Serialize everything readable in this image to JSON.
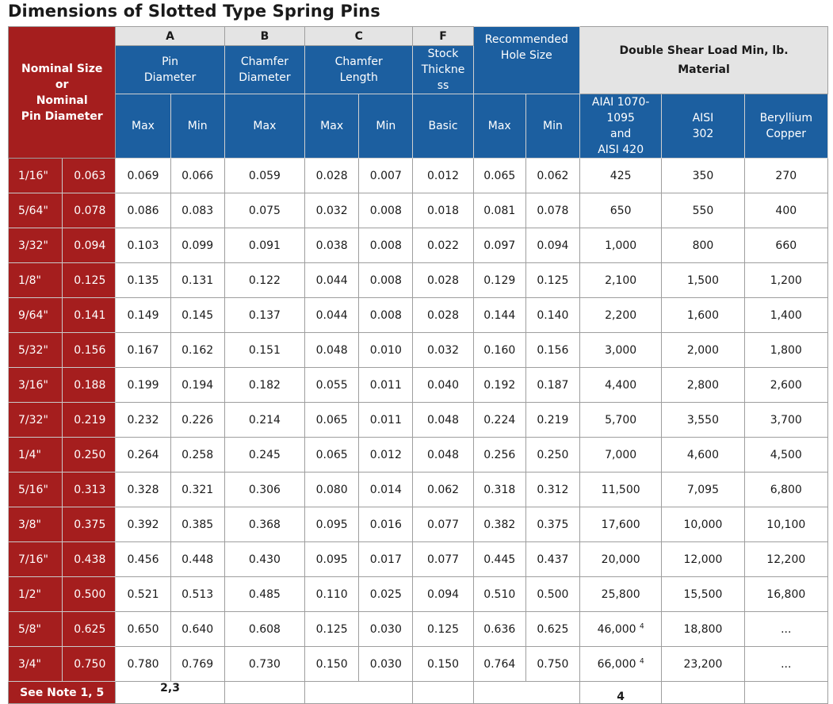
{
  "title": "Dimensions of Slotted Type Spring Pins",
  "header": {
    "nominal": [
      "Nominal Size",
      "or",
      "Nominal",
      "Pin Diameter"
    ],
    "letters": {
      "a": "A",
      "b": "B",
      "c": "C",
      "f": "F"
    },
    "pin_diameter": [
      "Pin",
      "Diameter"
    ],
    "chamfer_diameter": [
      "Chamfer",
      "Diameter"
    ],
    "chamfer_length": [
      "Chamfer",
      "Length"
    ],
    "stock_thickness": [
      "Stock",
      "Thickne",
      "ss"
    ],
    "recommended_hole": [
      "Recommended",
      "Hole Size"
    ],
    "shear_load": [
      "Double Shear Load Min, lb.",
      "Material"
    ],
    "aisi_1070": [
      "AIAI 1070-",
      "1095",
      "and",
      "AISI 420"
    ],
    "aisi_302": [
      "AISI",
      "302"
    ],
    "beryllium": [
      "Beryllium",
      "Copper"
    ],
    "max": "Max",
    "min": "Min",
    "basic": "Basic"
  },
  "rows": [
    {
      "frac": "1/16\"",
      "dec": "0.063",
      "a_max": "0.069",
      "a_min": "0.066",
      "b_max": "0.059",
      "c_max": "0.028",
      "c_min": "0.007",
      "f": "0.012",
      "h_max": "0.065",
      "h_min": "0.062",
      "l1": "425",
      "l1_note": "",
      "l2": "350",
      "l3": "270"
    },
    {
      "frac": "5/64\"",
      "dec": "0.078",
      "a_max": "0.086",
      "a_min": "0.083",
      "b_max": "0.075",
      "c_max": "0.032",
      "c_min": "0.008",
      "f": "0.018",
      "h_max": "0.081",
      "h_min": "0.078",
      "l1": "650",
      "l1_note": "",
      "l2": "550",
      "l3": "400"
    },
    {
      "frac": "3/32\"",
      "dec": "0.094",
      "a_max": "0.103",
      "a_min": "0.099",
      "b_max": "0.091",
      "c_max": "0.038",
      "c_min": "0.008",
      "f": "0.022",
      "h_max": "0.097",
      "h_min": "0.094",
      "l1": "1,000",
      "l1_note": "",
      "l2": "800",
      "l3": "660"
    },
    {
      "frac": "1/8\"",
      "dec": "0.125",
      "a_max": "0.135",
      "a_min": "0.131",
      "b_max": "0.122",
      "c_max": "0.044",
      "c_min": "0.008",
      "f": "0.028",
      "h_max": "0.129",
      "h_min": "0.125",
      "l1": "2,100",
      "l1_note": "",
      "l2": "1,500",
      "l3": "1,200"
    },
    {
      "frac": "9/64\"",
      "dec": "0.141",
      "a_max": "0.149",
      "a_min": "0.145",
      "b_max": "0.137",
      "c_max": "0.044",
      "c_min": "0.008",
      "f": "0.028",
      "h_max": "0.144",
      "h_min": "0.140",
      "l1": "2,200",
      "l1_note": "",
      "l2": "1,600",
      "l3": "1,400"
    },
    {
      "frac": "5/32\"",
      "dec": "0.156",
      "a_max": "0.167",
      "a_min": "0.162",
      "b_max": "0.151",
      "c_max": "0.048",
      "c_min": "0.010",
      "f": "0.032",
      "h_max": "0.160",
      "h_min": "0.156",
      "l1": "3,000",
      "l1_note": "",
      "l2": "2,000",
      "l3": "1,800"
    },
    {
      "frac": "3/16\"",
      "dec": "0.188",
      "a_max": "0.199",
      "a_min": "0.194",
      "b_max": "0.182",
      "c_max": "0.055",
      "c_min": "0.011",
      "f": "0.040",
      "h_max": "0.192",
      "h_min": "0.187",
      "l1": "4,400",
      "l1_note": "",
      "l2": "2,800",
      "l3": "2,600"
    },
    {
      "frac": "7/32\"",
      "dec": "0.219",
      "a_max": "0.232",
      "a_min": "0.226",
      "b_max": "0.214",
      "c_max": "0.065",
      "c_min": "0.011",
      "f": "0.048",
      "h_max": "0.224",
      "h_min": "0.219",
      "l1": "5,700",
      "l1_note": "",
      "l2": "3,550",
      "l3": "3,700"
    },
    {
      "frac": "1/4\"",
      "dec": "0.250",
      "a_max": "0.264",
      "a_min": "0.258",
      "b_max": "0.245",
      "c_max": "0.065",
      "c_min": "0.012",
      "f": "0.048",
      "h_max": "0.256",
      "h_min": "0.250",
      "l1": "7,000",
      "l1_note": "",
      "l2": "4,600",
      "l3": "4,500"
    },
    {
      "frac": "5/16\"",
      "dec": "0.313",
      "a_max": "0.328",
      "a_min": "0.321",
      "b_max": "0.306",
      "c_max": "0.080",
      "c_min": "0.014",
      "f": "0.062",
      "h_max": "0.318",
      "h_min": "0.312",
      "l1": "11,500",
      "l1_note": "",
      "l2": "7,095",
      "l3": "6,800"
    },
    {
      "frac": "3/8\"",
      "dec": "0.375",
      "a_max": "0.392",
      "a_min": "0.385",
      "b_max": "0.368",
      "c_max": "0.095",
      "c_min": "0.016",
      "f": "0.077",
      "h_max": "0.382",
      "h_min": "0.375",
      "l1": "17,600",
      "l1_note": "",
      "l2": "10,000",
      "l3": "10,100"
    },
    {
      "frac": "7/16\"",
      "dec": "0.438",
      "a_max": "0.456",
      "a_min": "0.448",
      "b_max": "0.430",
      "c_max": "0.095",
      "c_min": "0.017",
      "f": "0.077",
      "h_max": "0.445",
      "h_min": "0.437",
      "l1": "20,000",
      "l1_note": "",
      "l2": "12,000",
      "l3": "12,200"
    },
    {
      "frac": "1/2\"",
      "dec": "0.500",
      "a_max": "0.521",
      "a_min": "0.513",
      "b_max": "0.485",
      "c_max": "0.110",
      "c_min": "0.025",
      "f": "0.094",
      "h_max": "0.510",
      "h_min": "0.500",
      "l1": "25,800",
      "l1_note": "",
      "l2": "15,500",
      "l3": "16,800"
    },
    {
      "frac": "5/8\"",
      "dec": "0.625",
      "a_max": "0.650",
      "a_min": "0.640",
      "b_max": "0.608",
      "c_max": "0.125",
      "c_min": "0.030",
      "f": "0.125",
      "h_max": "0.636",
      "h_min": "0.625",
      "l1": "46,000",
      "l1_note": "4",
      "l2": "18,800",
      "l3": "..."
    },
    {
      "frac": "3/4\"",
      "dec": "0.750",
      "a_max": "0.780",
      "a_min": "0.769",
      "b_max": "0.730",
      "c_max": "0.150",
      "c_min": "0.030",
      "f": "0.150",
      "h_max": "0.764",
      "h_min": "0.750",
      "l1": "66,000",
      "l1_note": "4",
      "l2": "23,200",
      "l3": "..."
    }
  ],
  "footer": {
    "see_note": "See Note 1, 5",
    "a_note": "2,3",
    "load_note": "4"
  }
}
